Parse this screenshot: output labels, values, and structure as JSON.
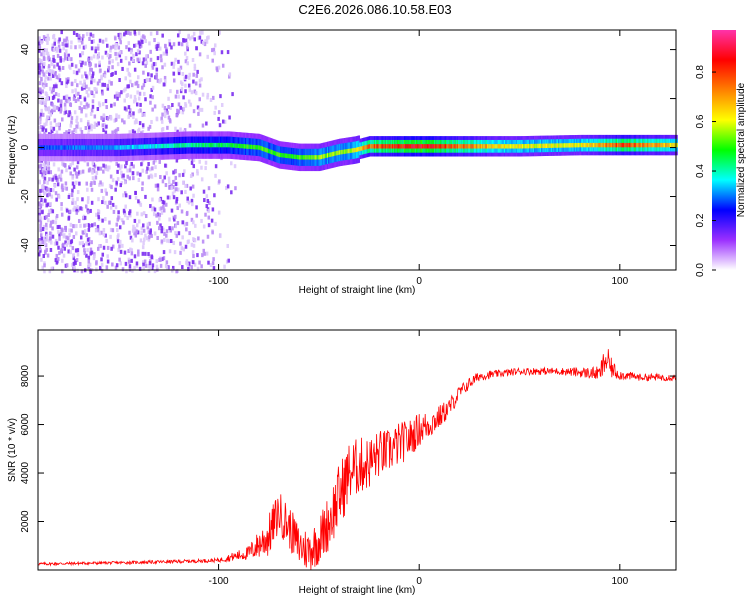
{
  "title": "C2E6.2026.086.10.58.E03",
  "chart_data": [
    {
      "type": "heatmap",
      "xlabel": "Height of straight line (km)",
      "ylabel": "Frequency (Hz)",
      "xlim": [
        -190,
        128
      ],
      "ylim": [
        -50,
        48
      ],
      "xticks": [
        -100,
        0,
        100
      ],
      "xtick_labels": [
        "-100",
        "0",
        "100"
      ],
      "yticks": [
        -40,
        -20,
        0,
        20,
        40
      ],
      "ytick_labels": [
        "-40",
        "-20",
        "0",
        "20",
        "40"
      ],
      "colorbar": {
        "label": "Normalized spectral amplitude",
        "range": [
          0,
          0.97
        ],
        "ticks": [
          0,
          0.2,
          0.4,
          0.6,
          0.8
        ],
        "tick_labels": [
          "0.0",
          "0.2",
          "0.4",
          "0.6",
          "0.8"
        ],
        "colors": [
          "#ffffff",
          "#9b30ff",
          "#0000ff",
          "#00ffff",
          "#00ff00",
          "#ffff00",
          "#ff8000",
          "#ff0000",
          "#ff33aa"
        ]
      },
      "ridge": {
        "description": "Doppler carrier ridge (center frequency vs height)",
        "x": [
          -190,
          -150,
          -115,
          -95,
          -80,
          -70,
          -60,
          -50,
          -40,
          -32,
          -25,
          -10,
          0,
          20,
          50,
          80,
          100,
          128
        ],
        "freq_hz": [
          0,
          0,
          1,
          1,
          0,
          -3,
          -4,
          -4,
          -2,
          -1,
          0.5,
          0.5,
          0.5,
          0.5,
          0.5,
          1,
          1,
          1
        ],
        "peak_amplitude": [
          0.3,
          0.35,
          0.45,
          0.5,
          0.55,
          0.55,
          0.55,
          0.6,
          0.6,
          0.65,
          0.8,
          0.9,
          0.95,
          0.8,
          0.65,
          0.65,
          0.85,
          0.7
        ]
      },
      "noise_region": {
        "x_start": -190,
        "x_end": -110,
        "amplitude": 0.2
      }
    },
    {
      "type": "line",
      "color": "#ff0000",
      "xlabel": "Height of straight line (km)",
      "ylabel": "SNR (10 * v/v)",
      "xlim": [
        -190,
        128
      ],
      "ylim": [
        0,
        9900
      ],
      "xticks": [
        -100,
        0,
        100
      ],
      "xtick_labels": [
        "-100",
        "0",
        "100"
      ],
      "yticks": [
        2000,
        4000,
        6000,
        8000
      ],
      "ytick_labels": [
        "2000",
        "4000",
        "6000",
        "8000"
      ],
      "x": [
        -190,
        -150,
        -120,
        -100,
        -85,
        -75,
        -70,
        -65,
        -60,
        -55,
        -50,
        -45,
        -40,
        -35,
        -30,
        -25,
        -20,
        -15,
        -10,
        -5,
        0,
        5,
        10,
        15,
        20,
        25,
        30,
        40,
        50,
        60,
        70,
        80,
        90,
        93,
        96,
        100,
        110,
        128
      ],
      "y": [
        250,
        300,
        350,
        400,
        700,
        1400,
        2400,
        1800,
        1000,
        800,
        1200,
        2000,
        3000,
        4000,
        4300,
        4400,
        4800,
        4900,
        5200,
        5400,
        5800,
        6000,
        6300,
        6700,
        7300,
        7700,
        8000,
        8100,
        8200,
        8200,
        8200,
        8150,
        8100,
        8700,
        8300,
        8050,
        7950,
        7950
      ],
      "noise_amplitude": [
        60,
        60,
        70,
        80,
        300,
        900,
        900,
        900,
        900,
        900,
        1000,
        1200,
        1400,
        1300,
        1200,
        1100,
        1000,
        900,
        900,
        800,
        700,
        600,
        500,
        400,
        300,
        250,
        200,
        150,
        150,
        150,
        150,
        200,
        300,
        700,
        400,
        200,
        150,
        150
      ]
    }
  ]
}
